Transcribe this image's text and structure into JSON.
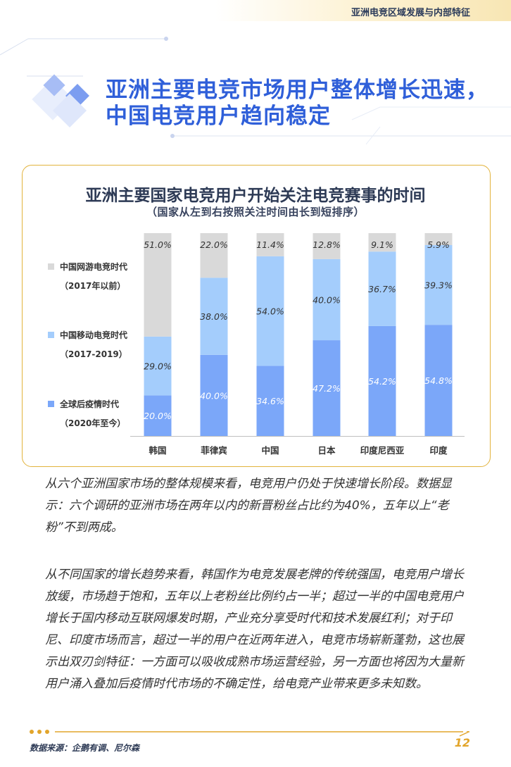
{
  "header": {
    "section_title": "亚洲电竞区域发展与内部特征"
  },
  "main_title": {
    "line1": "亚洲主要电竞市场用户整体增长迅速，",
    "line2": "中国电竞用户趋向稳定"
  },
  "chart_data": {
    "type": "bar",
    "stacked": true,
    "title": "亚洲主要国家电竞用户开始关注电竞赛事的时间",
    "subtitle": "（国家从左到右按照关注时间由长到短排序）",
    "categories": [
      "韩国",
      "菲律宾",
      "中国",
      "日本",
      "印度尼西亚",
      "印度"
    ],
    "series": [
      {
        "name": "全球后疫情时代",
        "period": "（2020年至今）",
        "color": "#7ba7f9",
        "values": [
          20.0,
          40.0,
          34.6,
          47.2,
          54.2,
          54.8
        ],
        "labels": [
          "20.0%",
          "40.0%",
          "34.6%",
          "47.2%",
          "54.2%",
          "54.8%"
        ]
      },
      {
        "name": "中国移动电竞时代",
        "period": "（2017-2019）",
        "color": "#a4cdfc",
        "values": [
          29.0,
          38.0,
          54.0,
          40.0,
          36.7,
          39.3
        ],
        "labels": [
          "29.0%",
          "38.0%",
          "54.0%",
          "40.0%",
          "36.7%",
          "39.3%"
        ]
      },
      {
        "name": "中国网游电竞时代",
        "period": "（2017年以前）",
        "color": "#d9d9d9",
        "values": [
          51.0,
          22.0,
          11.4,
          12.8,
          9.1,
          5.9
        ],
        "labels": [
          "51.0%",
          "22.0%",
          "11.4%",
          "12.8%",
          "9.1%",
          "5.9%"
        ]
      }
    ],
    "ylim": [
      0,
      100
    ]
  },
  "paragraphs": [
    "从六个亚洲国家市场的整体规模来看，电竞用户仍处于快速增长阶段。数据显示：六个调研的亚洲市场在两年以内的新晋粉丝占比约为40%，五年以上“老粉”不到两成。",
    "从不同国家的增长趋势来看，韩国作为电竞发展老牌的传统强国，电竞用户增长放缓，市场趋于饱和，五年以上老粉丝比例约占一半；超过一半的中国电竞用户增长于国内移动互联网爆发时期，产业充分享受时代和技术发展红利；对于印尼、印度市场而言，超过一半的用户在近两年进入，电竞市场崭新蓬勃，这也展示出双刃剑特征：一方面可以吸收成熟市场运营经验，另一方面也将因为大量新用户涌入叠加后疫情时代市场的不确定性，给电竞产业带来更多未知数。"
  ],
  "footer": {
    "source": "数据来源：企鹅有调、尼尔森",
    "page": "12"
  }
}
